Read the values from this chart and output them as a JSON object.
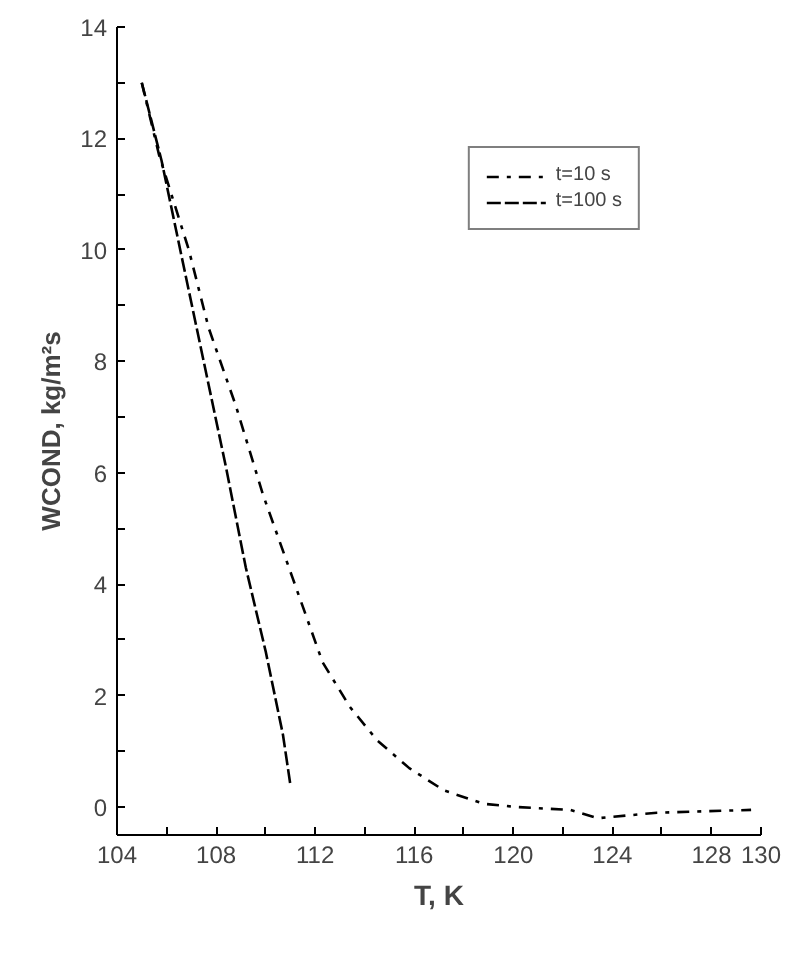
{
  "chart_data": {
    "type": "line",
    "xlabel": "T, K",
    "ylabel": "WCOND, kg/m²s",
    "xlim": [
      104,
      130
    ],
    "ylim": [
      -0.5,
      14
    ],
    "xticks": [
      104,
      {
        "value": 106,
        "label": null
      },
      108,
      {
        "value": 110,
        "label": null
      },
      112,
      {
        "value": 114,
        "label": null
      },
      116,
      {
        "value": 118,
        "label": null
      },
      120,
      {
        "value": 122,
        "label": null
      },
      124,
      {
        "value": 126,
        "label": null
      },
      128,
      130
    ],
    "yticks": [
      0,
      {
        "value": 1,
        "label": null
      },
      2,
      {
        "value": 3,
        "label": null
      },
      4,
      {
        "value": 5,
        "label": null
      },
      6,
      {
        "value": 7,
        "label": null
      },
      8,
      {
        "value": 9,
        "label": null
      },
      10,
      {
        "value": 11,
        "label": null
      },
      12,
      {
        "value": 13,
        "label": null
      },
      14
    ],
    "grid": false,
    "legend": "top right",
    "series": [
      {
        "name": "t=10 s",
        "color": "#000000",
        "line_style": "dashdot",
        "x": [
          105.0,
          105.7,
          106.9,
          107.7,
          108.8,
          109.9,
          111.1,
          112.3,
          113.4,
          114.5,
          115.8,
          117.2,
          118.8,
          120.2,
          122.3,
          123.4,
          125.8,
          129.6
        ],
        "values": [
          13.0,
          11.7,
          10.0,
          8.6,
          7.2,
          5.6,
          4.1,
          2.6,
          1.8,
          1.2,
          0.7,
          0.3,
          0.06,
          0.0,
          -0.05,
          -0.2,
          -0.1,
          -0.05
        ]
      },
      {
        "name": "t=100 s",
        "color": "#000000",
        "line_style": "dashed",
        "x": [
          105.0,
          105.8,
          106.6,
          107.5,
          108.4,
          109.2,
          110.0,
          110.7,
          111.0
        ],
        "values": [
          13.0,
          11.6,
          9.9,
          8.0,
          6.1,
          4.3,
          2.8,
          1.3,
          0.4
        ]
      }
    ]
  }
}
